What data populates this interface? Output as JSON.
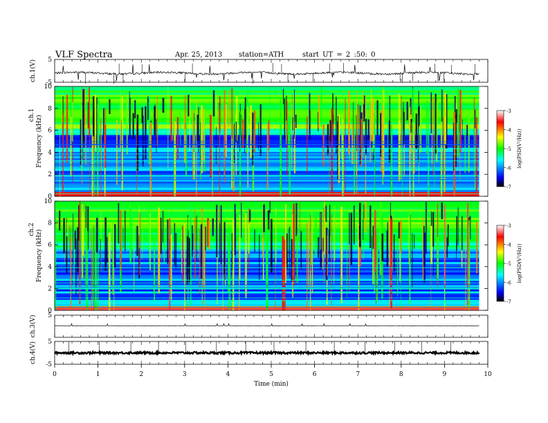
{
  "header": {
    "title": "VLF Spectra",
    "date": "Apr. 25, 2013",
    "station": "station=ATH",
    "start_ut": "start UT = 2 :50: 0"
  },
  "colors": {
    "background": "#ffffff",
    "trace": "#000000",
    "colormap": [
      "#000000",
      "#0000ff",
      "#00ffff",
      "#00ff00",
      "#ffff00",
      "#ff0000",
      "#ffffff"
    ]
  },
  "chart_data": [
    {
      "type": "line",
      "ylabel": "ch.1(V)",
      "ylim": [
        -5,
        5
      ],
      "yticks": [
        "5",
        "-5"
      ],
      "description_series": "waveform fluctuating around -1 V with spikes",
      "x_range_min": [
        0,
        9.8
      ],
      "baseline": -1.0
    },
    {
      "type": "heatmap",
      "ylabel_channel": "ch.1",
      "ylabel": "Frequency (kHz)",
      "ylim": [
        0,
        10
      ],
      "yticks": [
        "0",
        "2",
        "4",
        "6",
        "8",
        "10"
      ],
      "x_range_min": [
        0,
        9.8
      ],
      "colorbar": {
        "label": "log(PSD(V²/Hz))",
        "range": [
          -7,
          -3
        ],
        "ticks": [
          "-3",
          "-4",
          "-5",
          "-6",
          "-7"
        ]
      }
    },
    {
      "type": "heatmap",
      "ylabel_channel": "ch.2",
      "ylabel": "Frequency (kHz)",
      "ylim": [
        0,
        10
      ],
      "yticks": [
        "0",
        "2",
        "4",
        "6",
        "8",
        "10"
      ],
      "x_range_min": [
        0,
        9.8
      ],
      "colorbar": {
        "label": "log(PSD(V²/Hz))",
        "range": [
          -7,
          -3
        ],
        "ticks": [
          "-3",
          "-4",
          "-5",
          "-6",
          "-7"
        ]
      }
    },
    {
      "type": "line",
      "ylabel": "ch.3(V)",
      "ylim": [
        -5,
        5
      ],
      "yticks": [
        "5"
      ],
      "baseline": 0.2
    },
    {
      "type": "line",
      "ylabel": "ch.4(V)",
      "ylim": [
        -5,
        5
      ],
      "yticks": [
        "5",
        "-5"
      ],
      "baseline": 0.0
    }
  ],
  "xaxis": {
    "label": "Time (min)",
    "range": [
      0,
      10
    ],
    "ticks": [
      "0",
      "1",
      "2",
      "3",
      "4",
      "5",
      "6",
      "7",
      "8",
      "9",
      "10"
    ]
  }
}
